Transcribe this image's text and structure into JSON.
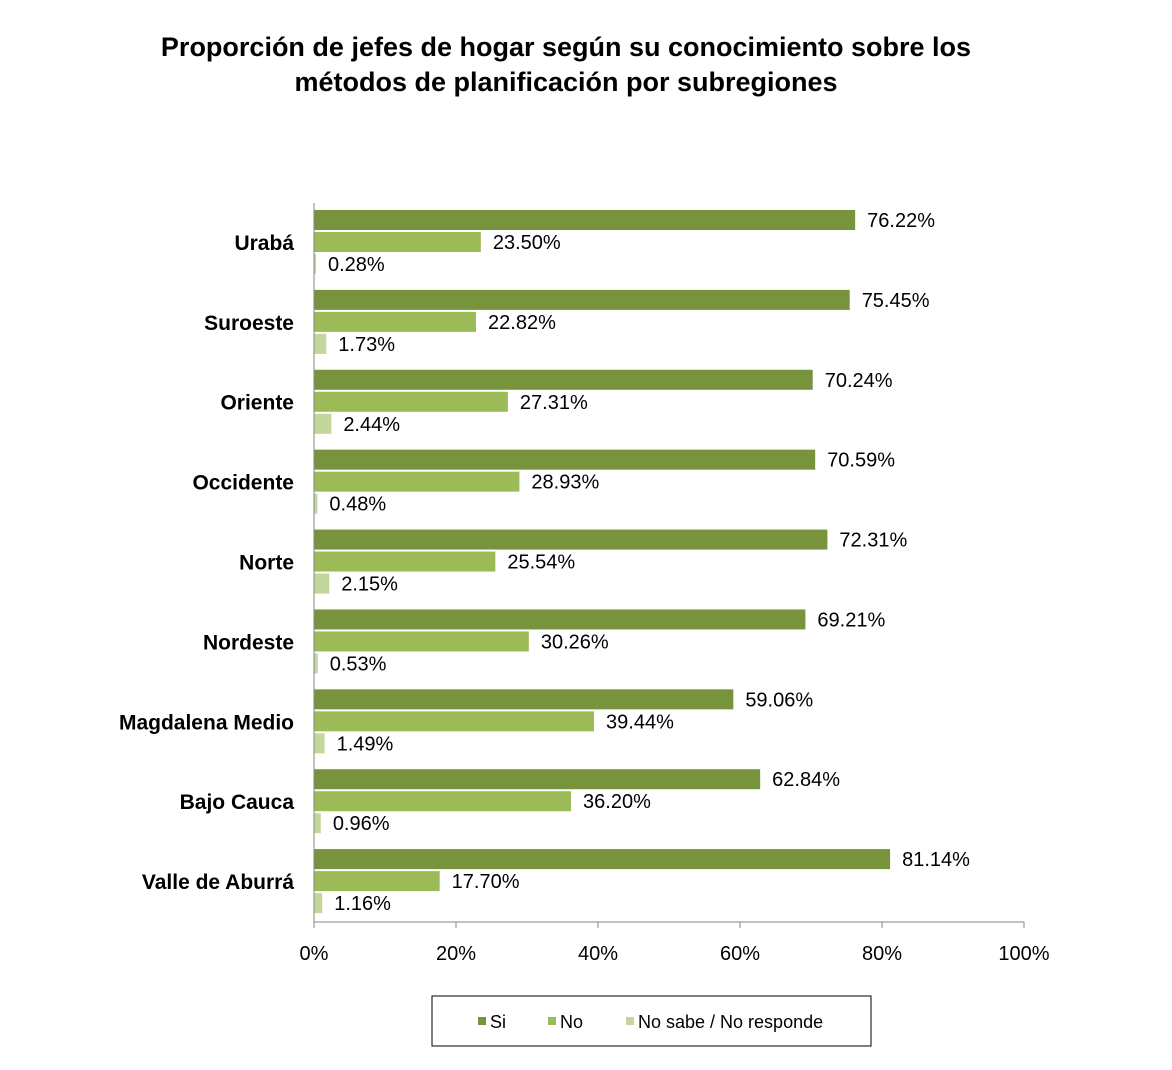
{
  "title_lines": [
    "Proporción de jefes de hogar según su conocimiento sobre los",
    "métodos de planificación por subregiones"
  ],
  "chart_data": {
    "type": "bar",
    "orientation": "horizontal",
    "title": "Proporción de jefes de hogar según su conocimiento sobre los métodos de planificación por subregiones",
    "categories": [
      "Urabá",
      "Suroeste",
      "Oriente",
      "Occidente",
      "Norte",
      "Nordeste",
      "Magdalena Medio",
      "Bajo Cauca",
      "Valle de Aburrá"
    ],
    "series": [
      {
        "name": "Si",
        "color": "#77933C",
        "values": [
          76.22,
          75.45,
          70.24,
          70.59,
          72.31,
          69.21,
          59.06,
          62.84,
          81.14
        ],
        "labels": [
          "76.22%",
          "75.45%",
          "70.24%",
          "70.59%",
          "72.31%",
          "69.21%",
          "59.06%",
          "62.84%",
          "81.14%"
        ]
      },
      {
        "name": "No",
        "color": "#9BBB59",
        "values": [
          23.5,
          22.82,
          27.31,
          28.93,
          25.54,
          30.26,
          39.44,
          36.2,
          17.7
        ],
        "labels": [
          "23.50%",
          "22.82%",
          "27.31%",
          "28.93%",
          "25.54%",
          "30.26%",
          "39.44%",
          "36.20%",
          "17.70%"
        ]
      },
      {
        "name": "No sabe / No responde",
        "color": "#C3D69B",
        "values": [
          0.28,
          1.73,
          2.44,
          0.48,
          2.15,
          0.53,
          1.49,
          0.96,
          1.16
        ],
        "labels": [
          "0.28%",
          "1.73%",
          "2.44%",
          "0.48%",
          "2.15%",
          "0.53%",
          "1.49%",
          "0.96%",
          "1.16%"
        ]
      }
    ],
    "xlim": [
      0,
      100
    ],
    "x_ticks": [
      "0%",
      "20%",
      "40%",
      "60%",
      "80%",
      "100%"
    ],
    "grid": false,
    "legend_position": "bottom"
  }
}
